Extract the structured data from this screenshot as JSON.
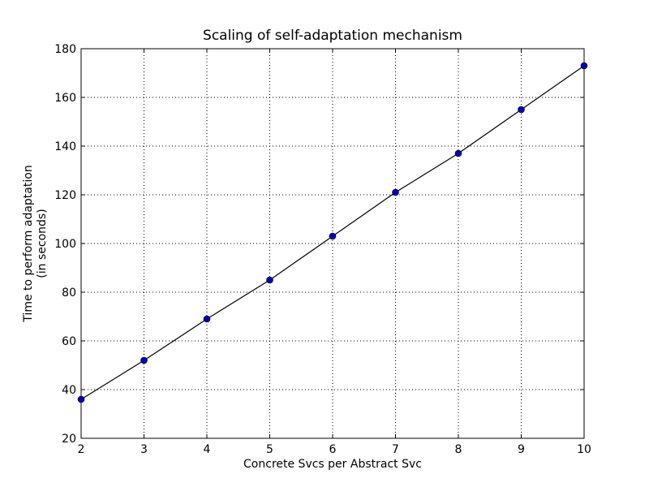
{
  "chart_data": {
    "type": "line",
    "title": "Scaling of self-adaptation mechanism",
    "xlabel": "Concrete Svcs per Abstract Svc",
    "ylabel_lines": [
      "Time to perform adaptation",
      "(in seconds)"
    ],
    "xlim": [
      2,
      10
    ],
    "ylim": [
      20,
      180
    ],
    "xticks": [
      2,
      3,
      4,
      5,
      6,
      7,
      8,
      9,
      10
    ],
    "yticks": [
      20,
      40,
      60,
      80,
      100,
      120,
      140,
      160,
      180
    ],
    "grid": true,
    "series": [
      {
        "x": [
          2,
          3,
          4,
          5,
          6,
          7,
          8,
          9,
          10
        ],
        "y": [
          36,
          52,
          69,
          85,
          103,
          121,
          137,
          155,
          173
        ],
        "line_color": "#000000",
        "marker_color": "#0000bf",
        "marker": "circle"
      }
    ]
  }
}
